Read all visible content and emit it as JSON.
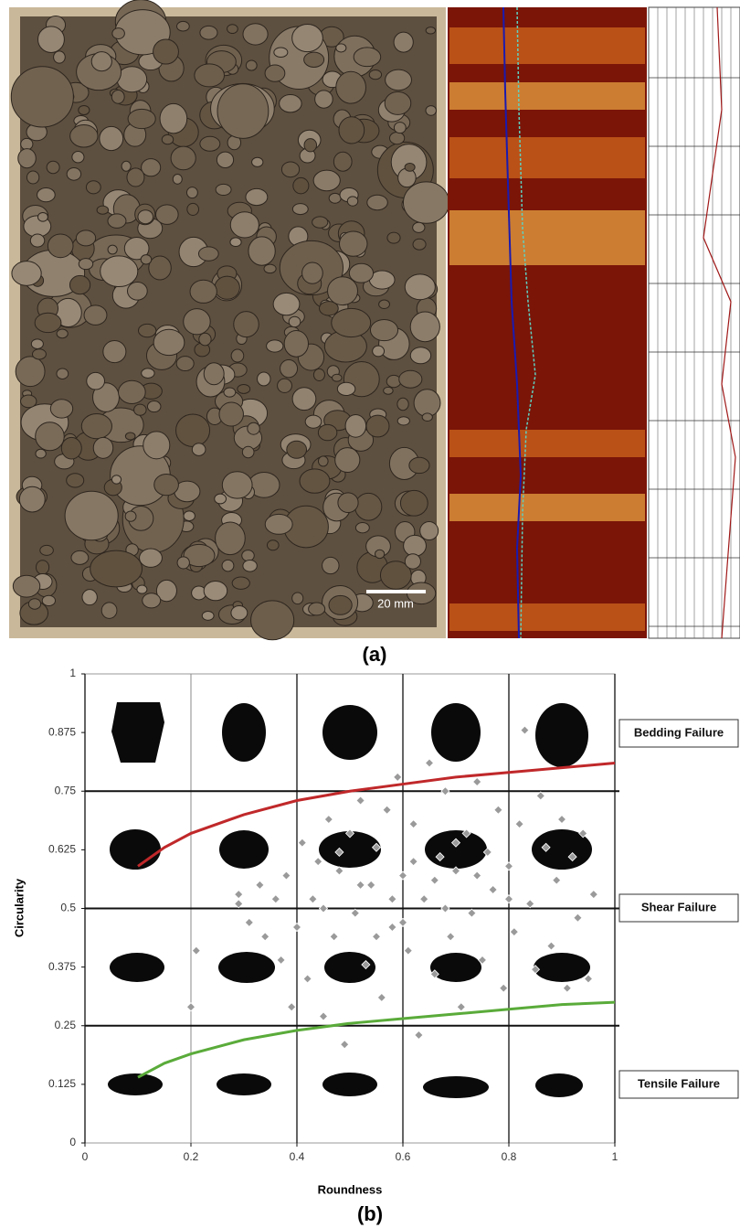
{
  "figure": {
    "panel_a": {
      "label": "(a)",
      "scale_bar": "20 mm"
    },
    "panel_b_label": "(b)"
  },
  "chart_data": {
    "type": "scatter",
    "x_label": "Roundness",
    "y_label": "Circularity",
    "xlim": [
      0,
      1
    ],
    "ylim": [
      0,
      1
    ],
    "xticks": [
      0,
      0.2,
      0.4,
      0.6,
      0.8,
      1
    ],
    "yticks": [
      0,
      0.125,
      0.25,
      0.375,
      0.5,
      0.625,
      0.75,
      0.875,
      1
    ],
    "cell_lines_x": [
      0.2,
      0.4,
      0.6,
      0.8,
      1
    ],
    "cell_lines_y": [
      0.25,
      0.5,
      0.75
    ],
    "annotations": [
      "Bedding Failure",
      "Shear Failure",
      "Tensile Failure"
    ],
    "points": {
      "color": "#9a9a9a",
      "x": [
        0.21,
        0.2,
        0.29,
        0.29,
        0.31,
        0.33,
        0.34,
        0.36,
        0.37,
        0.38,
        0.39,
        0.4,
        0.41,
        0.42,
        0.43,
        0.44,
        0.45,
        0.46,
        0.47,
        0.48,
        0.49,
        0.5,
        0.51,
        0.52,
        0.53,
        0.54,
        0.55,
        0.56,
        0.57,
        0.58,
        0.59,
        0.6,
        0.61,
        0.62,
        0.63,
        0.64,
        0.65,
        0.66,
        0.67,
        0.68,
        0.69,
        0.7,
        0.71,
        0.72,
        0.73,
        0.74,
        0.75,
        0.76,
        0.77,
        0.78,
        0.79,
        0.8,
        0.81,
        0.82,
        0.83,
        0.84,
        0.85,
        0.86,
        0.87,
        0.88,
        0.89,
        0.9,
        0.91,
        0.92,
        0.93,
        0.94,
        0.95,
        0.96,
        0.62,
        0.55,
        0.7,
        0.48,
        0.58,
        0.66,
        0.74,
        0.52,
        0.6,
        0.68,
        0.45,
        0.8
      ],
      "values": [
        0.41,
        0.29,
        0.51,
        0.53,
        0.47,
        0.55,
        0.44,
        0.52,
        0.39,
        0.57,
        0.29,
        0.46,
        0.64,
        0.35,
        0.52,
        0.6,
        0.27,
        0.69,
        0.44,
        0.58,
        0.21,
        0.66,
        0.49,
        0.73,
        0.38,
        0.55,
        0.63,
        0.31,
        0.71,
        0.46,
        0.78,
        0.57,
        0.41,
        0.68,
        0.23,
        0.52,
        0.81,
        0.36,
        0.61,
        0.75,
        0.44,
        0.58,
        0.29,
        0.66,
        0.49,
        0.77,
        0.39,
        0.62,
        0.54,
        0.71,
        0.33,
        0.59,
        0.45,
        0.68,
        0.88,
        0.51,
        0.37,
        0.74,
        0.63,
        0.42,
        0.56,
        0.69,
        0.33,
        0.61,
        0.48,
        0.66,
        0.35,
        0.53,
        0.6,
        0.44,
        0.64,
        0.62,
        0.52,
        0.56,
        0.57,
        0.55,
        0.47,
        0.5,
        0.5,
        0.52
      ]
    },
    "curves": [
      {
        "color": "#c0282a",
        "x": [
          0.1,
          0.15,
          0.2,
          0.3,
          0.4,
          0.5,
          0.6,
          0.7,
          0.8,
          0.9,
          1
        ],
        "values": [
          0.59,
          0.63,
          0.66,
          0.7,
          0.73,
          0.75,
          0.765,
          0.78,
          0.79,
          0.8,
          0.81
        ]
      },
      {
        "color": "#5aab3a",
        "x": [
          0.1,
          0.15,
          0.2,
          0.3,
          0.4,
          0.5,
          0.6,
          0.7,
          0.8,
          0.9,
          1
        ],
        "values": [
          0.14,
          0.17,
          0.19,
          0.22,
          0.24,
          0.255,
          0.265,
          0.275,
          0.285,
          0.295,
          0.3
        ]
      }
    ]
  }
}
